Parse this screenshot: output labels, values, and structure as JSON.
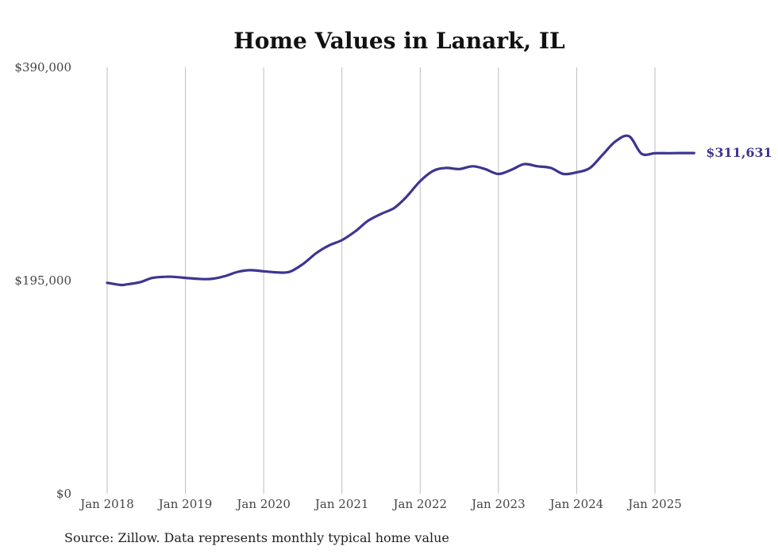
{
  "chart_data": {
    "type": "line",
    "title": "Home Values in Lanark, IL",
    "xlabel": "",
    "ylabel": "",
    "ylim": [
      0,
      390000
    ],
    "y_ticks": [
      {
        "value": 0,
        "label": "$0"
      },
      {
        "value": 195000,
        "label": "$195,000"
      },
      {
        "value": 390000,
        "label": "$390,000"
      }
    ],
    "x_ticks": [
      {
        "value": 2018.0,
        "label": "Jan 2018"
      },
      {
        "value": 2019.0,
        "label": "Jan 2019"
      },
      {
        "value": 2020.0,
        "label": "Jan 2020"
      },
      {
        "value": 2021.0,
        "label": "Jan 2021"
      },
      {
        "value": 2022.0,
        "label": "Jan 2022"
      },
      {
        "value": 2023.0,
        "label": "Jan 2023"
      },
      {
        "value": 2024.0,
        "label": "Jan 2024"
      },
      {
        "value": 2025.0,
        "label": "Jan 2025"
      }
    ],
    "grid": "vertical",
    "series": [
      {
        "color": "#3d3590",
        "x": [
          2018.0,
          2018.17,
          2018.25,
          2018.42,
          2018.58,
          2018.75,
          2018.83,
          2019.0,
          2019.17,
          2019.33,
          2019.5,
          2019.67,
          2019.83,
          2020.0,
          2020.17,
          2020.33,
          2020.5,
          2020.67,
          2020.83,
          2021.0,
          2021.17,
          2021.33,
          2021.5,
          2021.67,
          2021.83,
          2022.0,
          2022.17,
          2022.33,
          2022.5,
          2022.67,
          2022.83,
          2023.0,
          2023.17,
          2023.33,
          2023.5,
          2023.67,
          2023.83,
          2024.0,
          2024.17,
          2024.33,
          2024.5,
          2024.67,
          2024.83,
          2025.0,
          2025.17,
          2025.33,
          2025.5
        ],
        "y": [
          193000,
          191000,
          191500,
          193500,
          197500,
          198500,
          198500,
          197500,
          196500,
          196500,
          199000,
          203000,
          204500,
          203500,
          202500,
          203000,
          210000,
          220000,
          227000,
          232000,
          240000,
          249500,
          256000,
          261500,
          272000,
          286000,
          295500,
          298000,
          297000,
          299500,
          297000,
          292500,
          296500,
          301500,
          299500,
          298000,
          292500,
          294000,
          298000,
          310000,
          322500,
          327000,
          311000,
          311500,
          311500,
          311631,
          311631
        ],
        "end_label": "$311,631"
      }
    ],
    "source_note": "Source: Zillow. Data represents monthly typical home value"
  }
}
